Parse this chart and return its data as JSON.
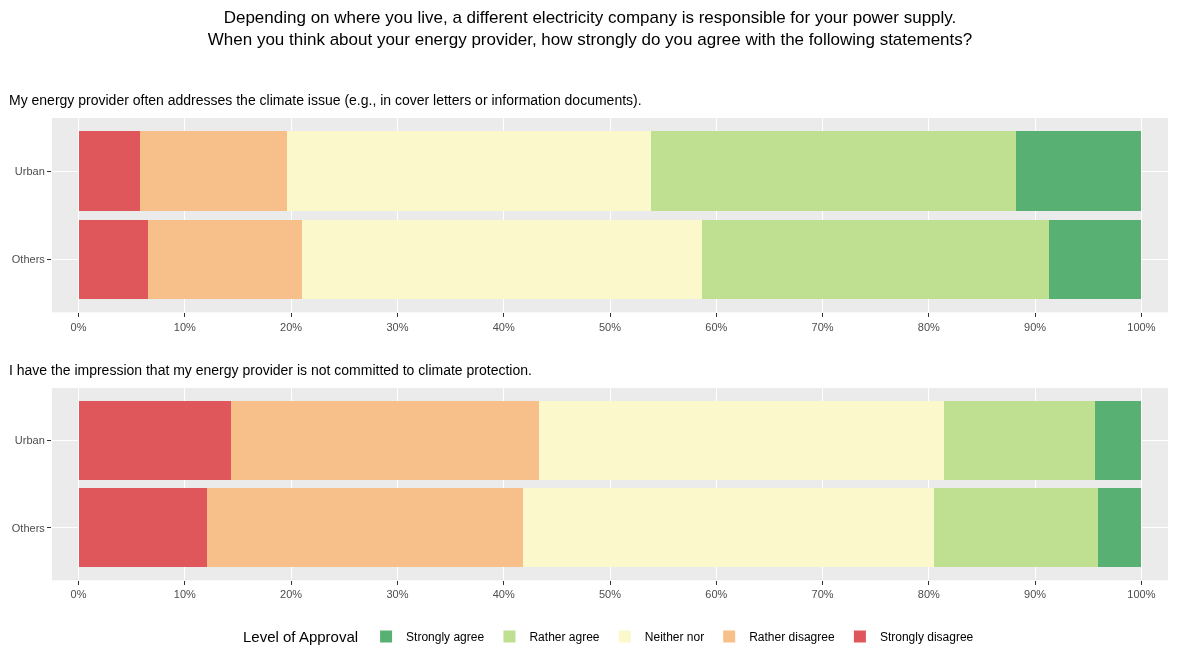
{
  "chart_data": [
    {
      "type": "bar",
      "orientation": "horizontal",
      "stacked": true,
      "grid": true,
      "legend": false,
      "title": "Depending on where you live, a different electricity company is responsible for your power supply.\nWhen you think about your energy provider, how strongly do you agree with the following statements?",
      "subtitle": "My energy provider often addresses the climate issue (e.g., in cover letters or information documents).",
      "categories": [
        "Urban",
        "Others"
      ],
      "xlim": [
        -2.5,
        102.5
      ],
      "xticks": [
        {
          "value": 0,
          "label": "0%"
        },
        {
          "value": 10,
          "label": "10%"
        },
        {
          "value": 20,
          "label": "20%"
        },
        {
          "value": 30,
          "label": "30%"
        },
        {
          "value": 40,
          "label": "40%"
        },
        {
          "value": 50,
          "label": "50%"
        },
        {
          "value": 60,
          "label": "60%"
        },
        {
          "value": 70,
          "label": "70%"
        },
        {
          "value": 80,
          "label": "80%"
        },
        {
          "value": 90,
          "label": "90%"
        },
        {
          "value": 100,
          "label": "100%"
        }
      ],
      "series": [
        {
          "color": "#df575a",
          "values": [
            5.8,
            6.5
          ]
        },
        {
          "color": "#f7c08b",
          "values": [
            13.8,
            14.5
          ]
        },
        {
          "color": "#fbf8cc",
          "values": [
            34.3,
            37.7
          ]
        },
        {
          "color": "#bfdf91",
          "values": [
            34.3,
            32.6
          ]
        },
        {
          "color": "#58b072",
          "values": [
            11.8,
            8.7
          ]
        }
      ]
    },
    {
      "type": "bar",
      "orientation": "horizontal",
      "stacked": true,
      "grid": true,
      "legend": "bottom",
      "subtitle": "I have the impression that my energy provider is not committed to climate protection.",
      "legend_title": "Level of Approval",
      "categories": [
        "Urban",
        "Others"
      ],
      "xlim": [
        -2.5,
        102.5
      ],
      "xticks": [
        {
          "value": 0,
          "label": "0%"
        },
        {
          "value": 10,
          "label": "10%"
        },
        {
          "value": 20,
          "label": "20%"
        },
        {
          "value": 30,
          "label": "30%"
        },
        {
          "value": 40,
          "label": "40%"
        },
        {
          "value": 50,
          "label": "50%"
        },
        {
          "value": 60,
          "label": "60%"
        },
        {
          "value": 70,
          "label": "70%"
        },
        {
          "value": 80,
          "label": "80%"
        },
        {
          "value": 90,
          "label": "90%"
        },
        {
          "value": 100,
          "label": "100%"
        }
      ],
      "series": [
        {
          "name": "Strongly disagree",
          "color": "#df575a",
          "values": [
            14.3,
            12.1
          ]
        },
        {
          "name": "Rather disagree",
          "color": "#f7c08b",
          "values": [
            29.0,
            29.7
          ]
        },
        {
          "name": "Neither nor",
          "color": "#fbf8cc",
          "values": [
            38.1,
            38.7
          ]
        },
        {
          "name": "Rather agree",
          "color": "#bfdf91",
          "values": [
            14.2,
            15.4
          ]
        },
        {
          "name": "Strongly agree",
          "color": "#58b072",
          "values": [
            4.4,
            4.1
          ]
        }
      ]
    }
  ]
}
